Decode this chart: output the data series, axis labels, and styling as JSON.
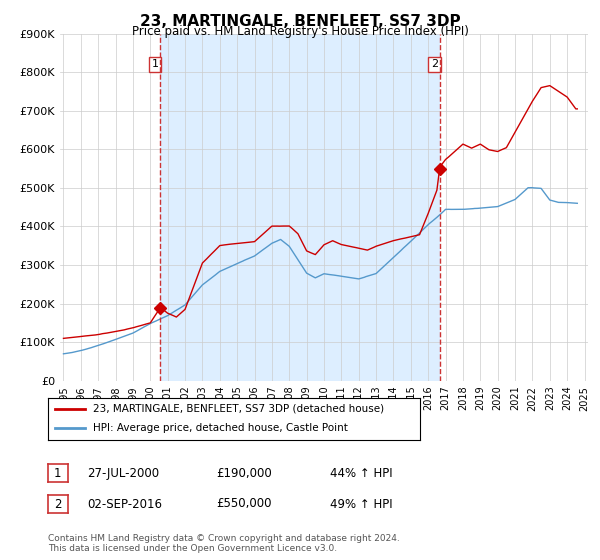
{
  "title": "23, MARTINGALE, BENFLEET, SS7 3DP",
  "subtitle": "Price paid vs. HM Land Registry's House Price Index (HPI)",
  "legend_line1": "23, MARTINGALE, BENFLEET, SS7 3DP (detached house)",
  "legend_line2": "HPI: Average price, detached house, Castle Point",
  "footnote": "Contains HM Land Registry data © Crown copyright and database right 2024.\nThis data is licensed under the Open Government Licence v3.0.",
  "annotation1_date": "27-JUL-2000",
  "annotation1_price": "£190,000",
  "annotation1_hpi": "44% ↑ HPI",
  "annotation2_date": "02-SEP-2016",
  "annotation2_price": "£550,000",
  "annotation2_hpi": "49% ↑ HPI",
  "ylim": [
    0,
    900000
  ],
  "yticks": [
    0,
    100000,
    200000,
    300000,
    400000,
    500000,
    600000,
    700000,
    800000,
    900000
  ],
  "price_color": "#cc0000",
  "hpi_color": "#5599cc",
  "vline_color": "#cc3333",
  "shade_color": "#ddeeff",
  "background_color": "#ffffff",
  "sale1_x": 2000.58,
  "sale1_y": 190000,
  "sale2_x": 2016.67,
  "sale2_y": 550000,
  "vline1_x": 2000.58,
  "vline2_x": 2016.67,
  "xlim_min": 1994.8,
  "xlim_max": 2025.2,
  "xticks": [
    1995,
    1996,
    1997,
    1998,
    1999,
    2000,
    2001,
    2002,
    2003,
    2004,
    2005,
    2006,
    2007,
    2008,
    2009,
    2010,
    2011,
    2012,
    2013,
    2014,
    2015,
    2016,
    2017,
    2018,
    2019,
    2020,
    2021,
    2022,
    2023,
    2024,
    2025
  ]
}
